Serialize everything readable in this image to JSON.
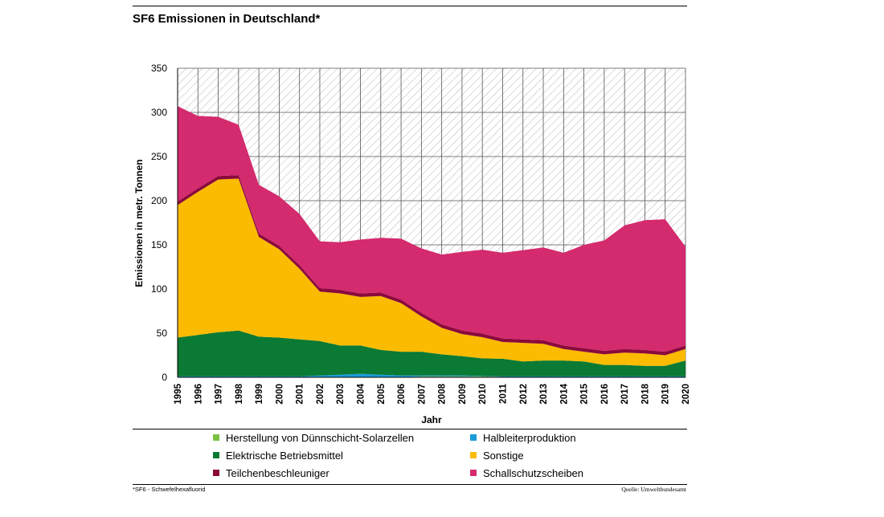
{
  "title": "SF6 Emissionen in Deutschland*",
  "footnote": "*SF6 - Schwefelhexafluorid",
  "source": "Quelle: Umweltbundesamt",
  "chart_data": {
    "type": "area",
    "stacked": true,
    "xlabel": "Jahr",
    "ylabel": "Emissionen in metr. Tonnen",
    "ylim": [
      0,
      350
    ],
    "yticks": [
      0,
      50,
      100,
      150,
      200,
      250,
      300,
      350
    ],
    "grid": true,
    "background_pattern": "diagonal-hatch",
    "legend_position": "bottom",
    "x": [
      "1995",
      "1996",
      "1997",
      "1998",
      "1999",
      "2000",
      "2001",
      "2002",
      "2003",
      "2004",
      "2005",
      "2006",
      "2007",
      "2008",
      "2009",
      "2010",
      "2011",
      "2012",
      "2013",
      "2014",
      "2015",
      "2016",
      "2017",
      "2018",
      "2019",
      "2020"
    ],
    "series": [
      {
        "name": "Herstellung von Dünnschicht-Solarzellen",
        "color": "#7bc143",
        "values": [
          0,
          0,
          0,
          0,
          0,
          0,
          0,
          0,
          0,
          0,
          0,
          0,
          1,
          1,
          1,
          1,
          0.5,
          0.5,
          0.5,
          0.5,
          0.5,
          0.5,
          0.5,
          0.5,
          0.5,
          0.5
        ]
      },
      {
        "name": "Halbleiterproduktion",
        "color": "#1a9bd7",
        "values": [
          1,
          1,
          1,
          1,
          1,
          1,
          1,
          2,
          3,
          4,
          3,
          2,
          1,
          1,
          1,
          0.5,
          0.5,
          0.5,
          0.5,
          0.5,
          0.5,
          0.5,
          0.5,
          0.5,
          0.5,
          0.5
        ]
      },
      {
        "name": "Elektrische Betriebsmittel",
        "color": "#0a7a34",
        "values": [
          44,
          47,
          50,
          52,
          45,
          44,
          42,
          39,
          33,
          32,
          28,
          27,
          27,
          24,
          22,
          20,
          20,
          17,
          18,
          18,
          17,
          13,
          13,
          12,
          12,
          18
        ]
      },
      {
        "name": "Sonstige",
        "color": "#fbbb00",
        "values": [
          150,
          162,
          173,
          172,
          113,
          100,
          80,
          56,
          59,
          55,
          61,
          55,
          40,
          30,
          25,
          24,
          19,
          21,
          19,
          13,
          11,
          12,
          14,
          14,
          12,
          13
        ]
      },
      {
        "name": "Teilchenbeschleuniger",
        "color": "#8b0a3c",
        "values": [
          4,
          4,
          4,
          4,
          4,
          4,
          4,
          4,
          4,
          4,
          4,
          4,
          4,
          4,
          4,
          4,
          4,
          4,
          4,
          4,
          4,
          4,
          4,
          4,
          4,
          4
        ]
      },
      {
        "name": "Schallschutzscheiben",
        "color": "#d42a6e",
        "values": [
          108,
          82,
          67,
          57,
          55,
          56,
          58,
          53,
          54,
          61,
          62,
          69,
          73,
          79,
          89,
          95,
          97,
          101,
          105,
          105,
          117,
          125,
          140,
          147,
          150,
          112
        ]
      }
    ]
  },
  "legend_order": [
    0,
    1,
    2,
    3,
    4,
    5
  ]
}
